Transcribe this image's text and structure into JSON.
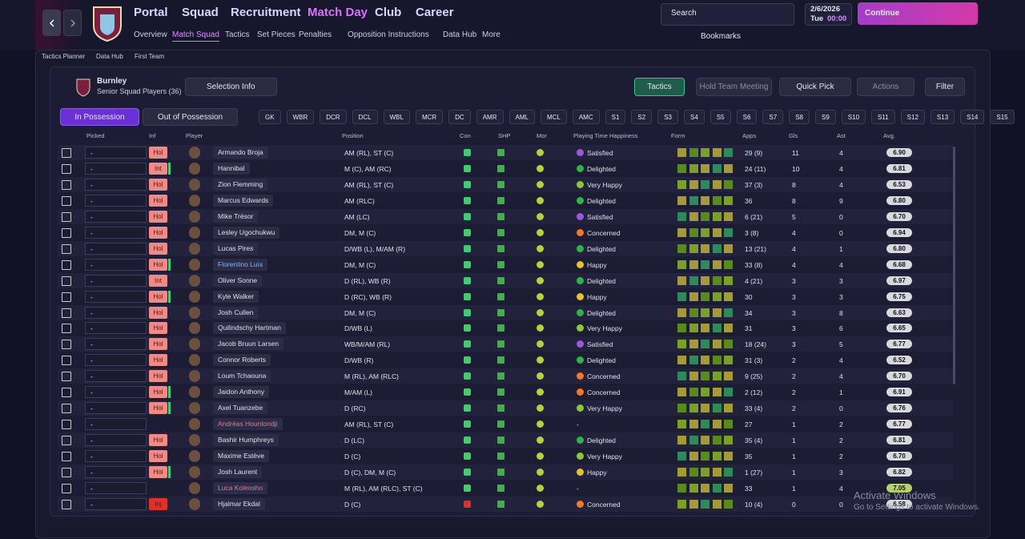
{
  "nav": {
    "menus": [
      "Portal",
      "Squad",
      "Recruitment",
      "Match Day",
      "Club",
      "Career"
    ],
    "submenu": [
      "Overview",
      "Match Squad",
      "Tactics",
      "Set Pieces",
      "Penalties",
      "Opposition Instructions",
      "Data Hub",
      "More"
    ],
    "search": "Search",
    "date": "2/6/2026",
    "day": "Tue",
    "time": "00:00",
    "continue": "Continue",
    "bookmarks": "Bookmarks"
  },
  "breadcrumb": [
    "Tactics Planner",
    "Data Hub",
    "First Team"
  ],
  "panel": {
    "team": "Burnley",
    "subtitle": "Senior Squad Players (36)",
    "selection_info": "Selection Info",
    "buttons": [
      "Tactics",
      "Hold Team Meeting",
      "Quick Pick",
      "Actions",
      "Filter"
    ],
    "tabs": [
      "In Possession",
      "Out of Possession"
    ],
    "positions": [
      "GK",
      "WBR",
      "DCR",
      "DCL",
      "WBL",
      "MCR",
      "DC",
      "AMR",
      "AML",
      "MCL",
      "AMC",
      "S1",
      "S2",
      "S3",
      "S4",
      "S5",
      "S6",
      "S7",
      "S8",
      "S9",
      "S10",
      "S11",
      "S12",
      "S13",
      "S14",
      "S15"
    ]
  },
  "table": {
    "columns": [
      "Picked",
      "Inf",
      "Player",
      "Position",
      "Con",
      "SHP",
      "Mor",
      "Playing Time Happiness",
      "Form",
      "Apps",
      "Gls",
      "Ast",
      "Avg."
    ],
    "rows": [
      {
        "picked": "-",
        "inf": "Hol",
        "name": "Armando Broja",
        "position": "AM (RL), ST (C)",
        "happiness": "Satisfied",
        "mood_color": "#9b59d6",
        "apps": "29 (9)",
        "gls": "11",
        "ast": "4",
        "avg": "6.90"
      },
      {
        "picked": "-",
        "inf": "Int",
        "name": "Hannibal",
        "position": "M (C), AM (RC)",
        "happiness": "Delighted",
        "mood_color": "#2fb34a",
        "apps": "24 (11)",
        "gls": "10",
        "ast": "4",
        "avg": "6.81"
      },
      {
        "picked": "-",
        "inf": "Hol",
        "name": "Zion Flemming",
        "position": "AM (RL), ST (C)",
        "happiness": "Very Happy",
        "mood_color": "#8cc63f",
        "apps": "37 (3)",
        "gls": "8",
        "ast": "4",
        "avg": "6.53"
      },
      {
        "picked": "-",
        "inf": "Hol",
        "name": "Marcus Edwards",
        "position": "AM (RLC)",
        "happiness": "Delighted",
        "mood_color": "#2fb34a",
        "apps": "36",
        "gls": "8",
        "ast": "9",
        "avg": "6.80"
      },
      {
        "picked": "-",
        "inf": "Hol",
        "name": "Mike Trésor",
        "position": "AM (LC)",
        "happiness": "Satisfied",
        "mood_color": "#9b59d6",
        "apps": "6 (21)",
        "gls": "5",
        "ast": "0",
        "avg": "6.70"
      },
      {
        "picked": "-",
        "inf": "Hol",
        "name": "Lesley Ugochukwu",
        "position": "DM, M (C)",
        "happiness": "Concerned",
        "mood_color": "#f07a2a",
        "apps": "3 (8)",
        "gls": "4",
        "ast": "0",
        "avg": "6.94"
      },
      {
        "picked": "-",
        "inf": "Hol",
        "name": "Lucas Pires",
        "position": "D/WB (L), M/AM (R)",
        "happiness": "Delighted",
        "mood_color": "#2fb34a",
        "apps": "13 (21)",
        "gls": "4",
        "ast": "1",
        "avg": "6.80"
      },
      {
        "picked": "-",
        "inf": "Hol",
        "name": "Florentino Luís",
        "position": "DM, M (C)",
        "happiness": "Happy",
        "mood_color": "#e8c22e",
        "apps": "33 (8)",
        "gls": "4",
        "ast": "4",
        "avg": "6.68"
      },
      {
        "picked": "-",
        "inf": "Int",
        "name": "Oliver Sonne",
        "position": "D (RL), WB (R)",
        "happiness": "Delighted",
        "mood_color": "#2fb34a",
        "apps": "4 (21)",
        "gls": "3",
        "ast": "3",
        "avg": "6.97"
      },
      {
        "picked": "-",
        "inf": "Hol",
        "name": "Kyle Walker",
        "position": "D (RC), WB (R)",
        "happiness": "Happy",
        "mood_color": "#e8c22e",
        "apps": "30",
        "gls": "3",
        "ast": "3",
        "avg": "6.75"
      },
      {
        "picked": "-",
        "inf": "Hol",
        "name": "Josh Cullen",
        "position": "DM, M (C)",
        "happiness": "Delighted",
        "mood_color": "#2fb34a",
        "apps": "34",
        "gls": "3",
        "ast": "8",
        "avg": "6.63"
      },
      {
        "picked": "-",
        "inf": "Hol",
        "name": "Quilindschy Hartman",
        "position": "D/WB (L)",
        "happiness": "Very Happy",
        "mood_color": "#8cc63f",
        "apps": "31",
        "gls": "3",
        "ast": "6",
        "avg": "6.65"
      },
      {
        "picked": "-",
        "inf": "Hol",
        "name": "Jacob Bruun Larsen",
        "position": "WB/M/AM (RL)",
        "happiness": "Satisfied",
        "mood_color": "#9b59d6",
        "apps": "18 (24)",
        "gls": "3",
        "ast": "5",
        "avg": "6.77"
      },
      {
        "picked": "-",
        "inf": "Hol",
        "name": "Connor Roberts",
        "position": "D/WB (R)",
        "happiness": "Delighted",
        "mood_color": "#2fb34a",
        "apps": "31 (3)",
        "gls": "2",
        "ast": "4",
        "avg": "6.52"
      },
      {
        "picked": "-",
        "inf": "Hol",
        "name": "Loum Tchaouna",
        "position": "M (RL), AM (RLC)",
        "happiness": "Concerned",
        "mood_color": "#f07a2a",
        "apps": "9 (25)",
        "gls": "2",
        "ast": "4",
        "avg": "6.70"
      },
      {
        "picked": "-",
        "inf": "Hol",
        "name": "Jaidon Anthony",
        "position": "M/AM (L)",
        "happiness": "Concerned",
        "mood_color": "#f07a2a",
        "apps": "2 (12)",
        "gls": "2",
        "ast": "1",
        "avg": "6.91"
      },
      {
        "picked": "-",
        "inf": "Hol",
        "name": "Axel Tuanzebe",
        "position": "D (RC)",
        "happiness": "Very Happy",
        "mood_color": "#8cc63f",
        "apps": "33 (4)",
        "gls": "2",
        "ast": "0",
        "avg": "6.76"
      },
      {
        "picked": "-",
        "name": "Andréas Hountondji",
        "position": "AM (RL), ST (C)",
        "happiness": "-",
        "apps": "27",
        "gls": "1",
        "ast": "2",
        "avg": "6.77"
      },
      {
        "picked": "-",
        "inf": "Hol",
        "name": "Bashir Humphreys",
        "position": "D (LC)",
        "happiness": "Delighted",
        "mood_color": "#2fb34a",
        "apps": "35 (4)",
        "gls": "1",
        "ast": "2",
        "avg": "6.81"
      },
      {
        "picked": "-",
        "inf": "Hol",
        "name": "Maxime Estève",
        "position": "D (C)",
        "happiness": "Very Happy",
        "mood_color": "#8cc63f",
        "apps": "35",
        "gls": "1",
        "ast": "2",
        "avg": "6.70"
      },
      {
        "picked": "-",
        "inf": "Hol",
        "name": "Josh Laurent",
        "position": "D (C), DM, M (C)",
        "happiness": "Happy",
        "mood_color": "#e8c22e",
        "apps": "1 (27)",
        "gls": "1",
        "ast": "3",
        "avg": "6.82"
      },
      {
        "picked": "-",
        "name": "Luca Koleosho",
        "position": "M (RL), AM (RLC), ST (C)",
        "happiness": "-",
        "apps": "33",
        "gls": "1",
        "ast": "4",
        "avg": "7.05"
      },
      {
        "picked": "-",
        "inf": "Inj",
        "name": "Hjalmar Ekdal",
        "position": "D (C)",
        "happiness": "Concerned",
        "mood_color": "#f07a2a",
        "apps": "10 (4)",
        "gls": "0",
        "ast": "0",
        "avg": "6.58"
      }
    ]
  },
  "watermark": {
    "title": "Activate Windows",
    "text": "Go to Settings to activate Windows."
  }
}
